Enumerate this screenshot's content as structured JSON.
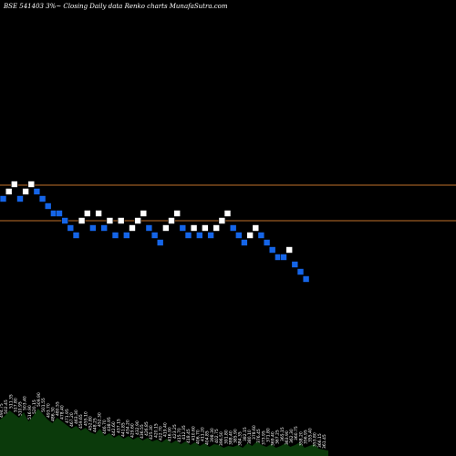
{
  "title": "BSE 541403 3%~  Closing Daily data  Renko  charts MunafaSutra.com",
  "colors": {
    "background": "#000000",
    "up_brick": "#ffffff",
    "down_brick": "#1565e8",
    "ref_line": "#c0702a",
    "volume_area": "#0b3a0b"
  },
  "chart_data": {
    "type": "renko",
    "title": "BSE 541403 3%~  Closing Daily data  Renko  charts MunafaSutra.com",
    "reference_levels": [
      512.0,
      488.0
    ],
    "bricks": [
      {
        "dir": "down",
        "level": 502
      },
      {
        "dir": "up",
        "level": 510
      },
      {
        "dir": "up",
        "level": 518
      },
      {
        "dir": "down",
        "level": 502
      },
      {
        "dir": "up",
        "level": 510
      },
      {
        "dir": "up",
        "level": 518
      },
      {
        "dir": "down",
        "level": 510
      },
      {
        "dir": "down",
        "level": 502
      },
      {
        "dir": "down",
        "level": 494
      },
      {
        "dir": "down",
        "level": 486
      },
      {
        "dir": "down",
        "level": 486
      },
      {
        "dir": "down",
        "level": 478
      },
      {
        "dir": "down",
        "level": 470
      },
      {
        "dir": "down",
        "level": 462
      },
      {
        "dir": "up",
        "level": 478
      },
      {
        "dir": "up",
        "level": 486
      },
      {
        "dir": "down",
        "level": 470
      },
      {
        "dir": "up",
        "level": 486
      },
      {
        "dir": "down",
        "level": 470
      },
      {
        "dir": "up",
        "level": 478
      },
      {
        "dir": "down",
        "level": 462
      },
      {
        "dir": "up",
        "level": 478
      },
      {
        "dir": "down",
        "level": 462
      },
      {
        "dir": "up",
        "level": 470
      },
      {
        "dir": "up",
        "level": 478
      },
      {
        "dir": "up",
        "level": 486
      },
      {
        "dir": "down",
        "level": 470
      },
      {
        "dir": "down",
        "level": 462
      },
      {
        "dir": "down",
        "level": 454
      },
      {
        "dir": "up",
        "level": 470
      },
      {
        "dir": "up",
        "level": 478
      },
      {
        "dir": "up",
        "level": 486
      },
      {
        "dir": "down",
        "level": 470
      },
      {
        "dir": "down",
        "level": 462
      },
      {
        "dir": "up",
        "level": 470
      },
      {
        "dir": "down",
        "level": 462
      },
      {
        "dir": "up",
        "level": 470
      },
      {
        "dir": "down",
        "level": 462
      },
      {
        "dir": "up",
        "level": 470
      },
      {
        "dir": "up",
        "level": 478
      },
      {
        "dir": "up",
        "level": 486
      },
      {
        "dir": "down",
        "level": 470
      },
      {
        "dir": "down",
        "level": 462
      },
      {
        "dir": "down",
        "level": 454
      },
      {
        "dir": "up",
        "level": 462
      },
      {
        "dir": "up",
        "level": 470
      },
      {
        "dir": "down",
        "level": 462
      },
      {
        "dir": "down",
        "level": 454
      },
      {
        "dir": "down",
        "level": 446
      },
      {
        "dir": "down",
        "level": 438
      },
      {
        "dir": "down",
        "level": 438
      },
      {
        "dir": "up",
        "level": 446
      },
      {
        "dir": "down",
        "level": 430
      },
      {
        "dir": "down",
        "level": 422
      },
      {
        "dir": "down",
        "level": 414
      }
    ],
    "volume_labels": [
      "494.75",
      "502.45",
      "511.35",
      "517.80",
      "510.95",
      "503.40",
      "516.90",
      "520.15",
      "509.90",
      "501.55",
      "493.70",
      "486.30",
      "480.55",
      "478.40",
      "471.95",
      "467.20",
      "463.30",
      "459.65",
      "455.10",
      "452.80",
      "448.25",
      "452.30",
      "446.70",
      "438.95",
      "442.60",
      "437.15",
      "441.85",
      "434.20",
      "429.60",
      "432.90",
      "436.55",
      "426.85",
      "425.30",
      "420.15",
      "422.70",
      "419.40",
      "416.90",
      "423.25",
      "415.70",
      "412.35",
      "418.45",
      "410.60",
      "406.70",
      "411.20",
      "404.85",
      "398.30",
      "402.75",
      "396.50",
      "391.80",
      "388.40",
      "385.90",
      "384.35",
      "382.15",
      "380.10",
      "378.60",
      "376.45",
      "373.95",
      "371.80",
      "369.40",
      "367.25",
      "365.15",
      "363.90",
      "362.30",
      "360.75",
      "358.20",
      "356.95",
      "355.40",
      "353.80",
      "366.15",
      "361.45"
    ],
    "volume_profile": [
      40,
      44,
      50,
      46,
      42,
      48,
      38,
      44,
      52,
      46,
      40,
      36,
      42,
      38,
      34,
      30,
      33,
      28,
      31,
      26,
      24,
      30,
      22,
      25,
      20,
      23,
      19,
      22,
      18,
      21,
      17,
      20,
      16,
      18,
      15,
      19,
      14,
      17,
      13,
      16,
      12,
      15,
      11,
      14,
      10,
      13,
      12,
      9,
      11,
      10,
      12,
      9,
      14,
      11,
      16,
      12,
      10,
      13,
      9,
      11,
      14,
      10,
      12,
      15,
      9,
      11,
      13,
      8,
      7,
      6
    ]
  }
}
